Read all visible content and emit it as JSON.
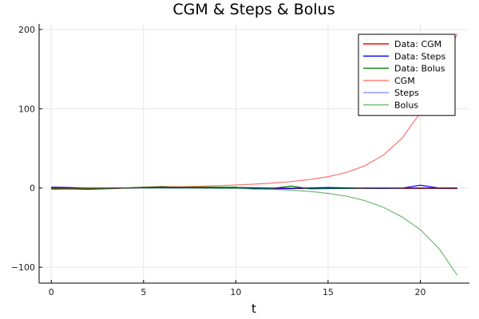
{
  "chart_data": {
    "type": "line",
    "title": "CGM & Steps & Bolus",
    "xlabel": "t",
    "ylabel": "",
    "xlim": [
      -0.66,
      22.66
    ],
    "ylim": [
      -120,
      207
    ],
    "xticks": [
      0,
      5,
      10,
      15,
      20
    ],
    "yticks": [
      -100,
      0,
      100,
      200
    ],
    "grid": true,
    "legend_position": "top-right",
    "x": [
      0,
      1,
      2,
      3,
      4,
      5,
      6,
      7,
      8,
      9,
      10,
      11,
      12,
      13,
      14,
      15,
      16,
      17,
      18,
      19,
      20,
      21,
      22
    ],
    "series": [
      {
        "name": "Data: CGM",
        "color": "#ff0000",
        "opacity": 1,
        "values": [
          -1.5,
          -1.2,
          -1.8,
          -1.0,
          -0.2,
          0.5,
          1.2,
          0.8,
          1.0,
          0.5,
          0.8,
          -0.5,
          -1.0,
          -0.8,
          -0.5,
          -0.4,
          -0.5,
          -0.6,
          -0.6,
          -0.6,
          -0.7,
          -0.7,
          -0.8
        ]
      },
      {
        "name": "Data: Steps",
        "color": "#0000ff",
        "opacity": 1,
        "values": [
          1.0,
          0.6,
          -0.8,
          -0.5,
          0.0,
          0.5,
          0.4,
          0.3,
          0.5,
          0.6,
          0.8,
          0.2,
          -0.3,
          -0.5,
          0.0,
          0.6,
          0.2,
          -0.3,
          -0.4,
          -0.2,
          3.5,
          0.0,
          0.0
        ]
      },
      {
        "name": "Data: Bolus",
        "color": "#008000",
        "opacity": 1,
        "values": [
          0.0,
          -0.5,
          -0.8,
          -0.5,
          0.0,
          1.0,
          1.8,
          1.0,
          1.2,
          1.0,
          1.0,
          -1.2,
          -0.5,
          2.5,
          -1.0,
          -0.8,
          -0.5,
          0.0,
          0.0,
          0.0,
          0.0,
          0.0,
          0.0
        ]
      },
      {
        "name": "CGM",
        "color": "#ff0000",
        "opacity": 0.55,
        "values": [
          -1.0,
          -0.8,
          -0.5,
          -0.2,
          0.2,
          0.6,
          1.0,
          1.6,
          2.2,
          2.9,
          3.8,
          4.9,
          6.3,
          8.1,
          10.7,
          14.2,
          19.7,
          28.1,
          41.5,
          62.5,
          95.0,
          140.0,
          195.0
        ]
      },
      {
        "name": "Steps",
        "color": "#0000ff",
        "opacity": 0.45,
        "values": [
          0.5,
          0.4,
          0.3,
          0.2,
          0.2,
          0.1,
          0.1,
          0.0,
          0.0,
          0.0,
          0.0,
          0.0,
          0.0,
          0.0,
          0.0,
          0.0,
          0.0,
          0.0,
          0.0,
          0.0,
          0.0,
          0.0,
          0.0
        ]
      },
      {
        "name": "Bolus",
        "color": "#008000",
        "opacity": 0.55,
        "values": [
          -0.5,
          -0.4,
          -0.3,
          -0.2,
          -0.1,
          0.0,
          0.0,
          -0.1,
          -0.2,
          -0.4,
          -0.6,
          -1.0,
          -1.7,
          -2.7,
          -4.3,
          -6.8,
          -10.4,
          -16.0,
          -24.4,
          -36.4,
          -52.5,
          -76.0,
          -110.0
        ]
      }
    ]
  }
}
